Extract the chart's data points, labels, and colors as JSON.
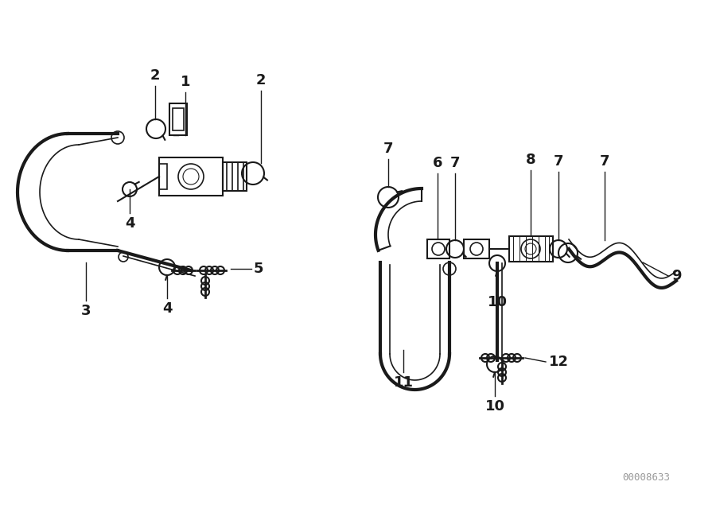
{
  "bg_color": "#ffffff",
  "line_color": "#1a1a1a",
  "label_color": "#111111",
  "watermark": "00008633",
  "font_size_label": 13,
  "font_size_watermark": 9
}
